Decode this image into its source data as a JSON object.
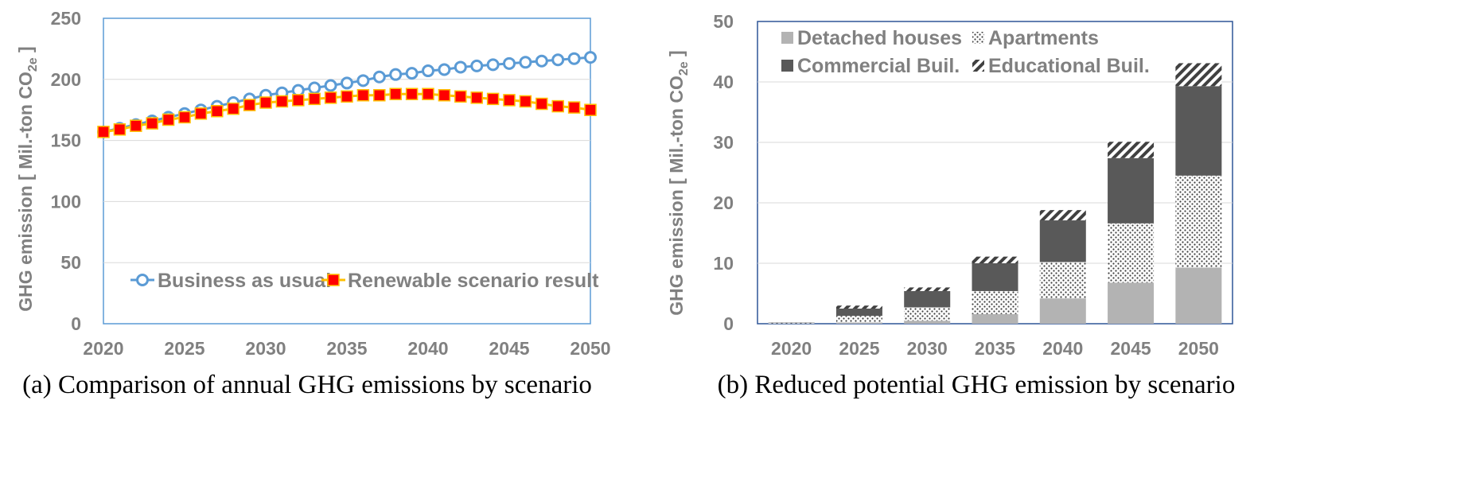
{
  "colors": {
    "bau": "#5B9BD5",
    "renewable_fill": "#FF0000",
    "renewable_edge": "#FFC000",
    "detached": "#B3B3B3",
    "commercial": "#595959",
    "axis_text": "#808080",
    "grid": "#D9D9D9"
  },
  "captions": {
    "a": "(a) Comparison of annual GHG emissions by scenario",
    "b": "(b) Reduced potential GHG emission by scenario"
  },
  "chart_data": [
    {
      "type": "line",
      "ylabel_main": "GHG emission [ Mil.-ton CO",
      "ylabel_sub": "2e",
      "ylabel_end": " ]",
      "xlim": [
        2020,
        2050
      ],
      "ylim": [
        0,
        250
      ],
      "xticks": [
        "2020",
        "2025",
        "2030",
        "2035",
        "2040",
        "2045",
        "2050"
      ],
      "yticks": [
        "0",
        "50",
        "100",
        "150",
        "200",
        "250"
      ],
      "grid": "horizontal",
      "legend_position": "bottom-left",
      "x": [
        2020,
        2021,
        2022,
        2023,
        2024,
        2025,
        2026,
        2027,
        2028,
        2029,
        2030,
        2031,
        2032,
        2033,
        2034,
        2035,
        2036,
        2037,
        2038,
        2039,
        2040,
        2041,
        2042,
        2043,
        2044,
        2045,
        2046,
        2047,
        2048,
        2049,
        2050
      ],
      "series": [
        {
          "name": "Business as usual",
          "values": [
            157,
            160,
            163,
            166,
            169,
            172,
            175,
            178,
            181,
            184,
            187,
            189,
            191,
            193,
            195,
            197,
            199,
            202,
            204,
            205,
            207,
            208,
            210,
            211,
            212,
            213,
            214,
            215,
            216,
            217,
            218
          ]
        },
        {
          "name": "Renewable scenario result",
          "values": [
            157,
            159,
            162,
            164,
            167,
            169,
            172,
            174,
            176,
            179,
            181,
            182,
            183,
            184,
            185,
            186,
            187,
            187,
            188,
            188,
            188,
            187,
            186,
            185,
            184,
            183,
            182,
            180,
            178,
            177,
            175
          ]
        }
      ]
    },
    {
      "type": "bar",
      "stacked": true,
      "ylabel_main": "GHG emission [ Mil.-ton CO",
      "ylabel_sub": "2e",
      "ylabel_end": " ]",
      "ylim": [
        0,
        50
      ],
      "yticks": [
        "0",
        "10",
        "20",
        "30",
        "40",
        "50"
      ],
      "grid": "horizontal",
      "legend_position": "top-left",
      "categories": [
        "2020",
        "2025",
        "2030",
        "2035",
        "2040",
        "2045",
        "2050"
      ],
      "series": [
        {
          "name": "Detached houses",
          "pattern": "solid-light",
          "values": [
            0.05,
            0.2,
            0.5,
            1.6,
            4.2,
            6.8,
            9.3
          ]
        },
        {
          "name": "Apartments",
          "pattern": "dots",
          "values": [
            0.1,
            1.1,
            2.2,
            3.8,
            6.0,
            9.8,
            15.2
          ]
        },
        {
          "name": "Commercial Buil.",
          "pattern": "solid-dark",
          "values": [
            0.05,
            1.2,
            2.7,
            4.6,
            6.9,
            10.8,
            14.8
          ]
        },
        {
          "name": "Educational Buil.",
          "pattern": "diagonal",
          "values": [
            0.0,
            0.5,
            0.6,
            1.1,
            1.7,
            2.7,
            3.8
          ]
        }
      ]
    }
  ]
}
